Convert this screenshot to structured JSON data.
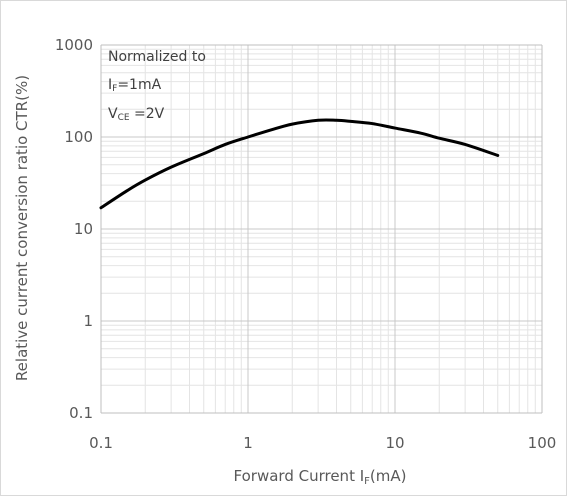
{
  "chart_data": {
    "type": "line",
    "xlabel": "Forward Current I",
    "xlabel_sub": "F",
    "xlabel_unit": "(mA)",
    "ylabel": "Relative current conversion ratio CTR(%)",
    "x_scale": "log",
    "y_scale": "log",
    "xlim": [
      0.1,
      100
    ],
    "ylim": [
      0.1,
      1000
    ],
    "x_ticks": [
      "0.1",
      "1",
      "10",
      "100"
    ],
    "y_ticks": [
      "0.1",
      "1",
      "10",
      "100",
      "1000"
    ],
    "grid": true,
    "annotation": {
      "line1": "Normalized to",
      "line2_main": "I",
      "line2_sub": "F",
      "line2_rest": "=1mA",
      "line3_main": "V",
      "line3_sub": "CE",
      "line3_rest": " =2V"
    },
    "series": [
      {
        "color": "#000000",
        "x": [
          0.1,
          0.15,
          0.2,
          0.3,
          0.5,
          0.7,
          1,
          1.5,
          2,
          3,
          4,
          5,
          7,
          10,
          15,
          20,
          30,
          50
        ],
        "y": [
          17,
          26,
          34,
          47,
          66,
          83,
          100,
          122,
          138,
          152,
          152,
          148,
          140,
          125,
          110,
          97,
          83,
          63
        ]
      }
    ]
  }
}
